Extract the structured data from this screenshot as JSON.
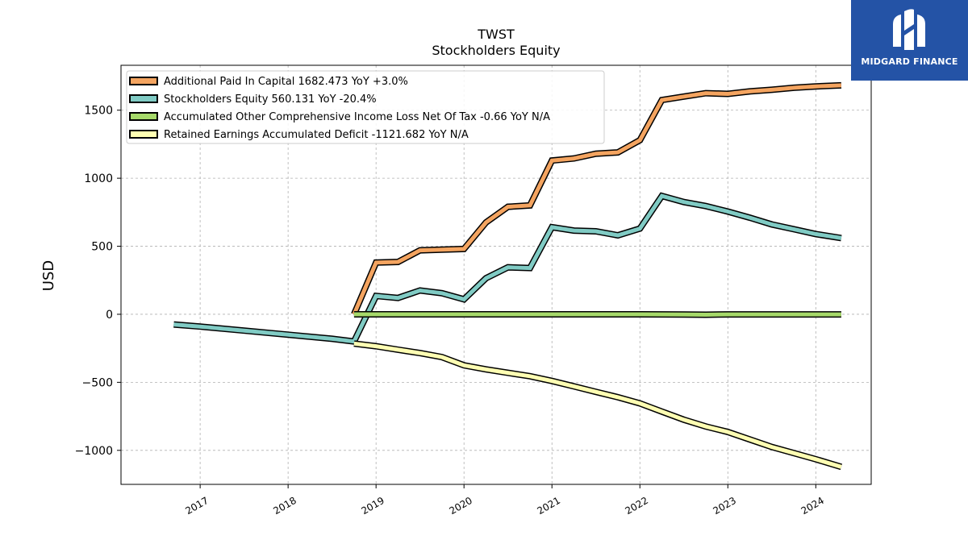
{
  "chart_data": {
    "type": "line",
    "title": "TWST",
    "subtitle": "Stockholders  Equity",
    "ylabel": "USD",
    "xlim": [
      2016.1,
      2024.63
    ],
    "ylim": [
      -1250,
      1830
    ],
    "yticks": [
      -1000,
      -500,
      0,
      500,
      1000,
      1500
    ],
    "ytick_labels": [
      "−1000",
      "−500",
      "0",
      "500",
      "1000",
      "1500"
    ],
    "xticks": [
      2017,
      2018,
      2019,
      2020,
      2021,
      2022,
      2023,
      2024
    ],
    "xtick_labels": [
      "2017",
      "2018",
      "2019",
      "2020",
      "2021",
      "2022",
      "2023",
      "2024"
    ],
    "grid": true,
    "legend_position": "top-left",
    "series": [
      {
        "name": "Additional Paid In Capital  1682.473 YoY +3.0%",
        "color": "#f4a460",
        "x": [
          2018.75,
          2019.0,
          2019.25,
          2019.5,
          2019.75,
          2020.0,
          2020.25,
          2020.5,
          2020.75,
          2021.0,
          2021.25,
          2021.5,
          2021.75,
          2022.0,
          2022.25,
          2022.5,
          2022.75,
          2023.0,
          2023.25,
          2023.5,
          2023.75,
          2024.0,
          2024.29
        ],
        "y": [
          0,
          380,
          385,
          470,
          475,
          480,
          675,
          790,
          800,
          1130,
          1145,
          1180,
          1190,
          1280,
          1575,
          1600,
          1625,
          1620,
          1638,
          1650,
          1665,
          1675,
          1682.473
        ]
      },
      {
        "name": "Stockholders Equity  560.131 YoY -20.4%",
        "color": "#80cbc4",
        "x": [
          2016.7,
          2017.0,
          2017.5,
          2018.0,
          2018.5,
          2018.75,
          2019.0,
          2019.25,
          2019.5,
          2019.75,
          2020.0,
          2020.25,
          2020.5,
          2020.75,
          2021.0,
          2021.25,
          2021.5,
          2021.75,
          2022.0,
          2022.25,
          2022.5,
          2022.75,
          2023.0,
          2023.25,
          2023.5,
          2023.75,
          2024.0,
          2024.29
        ],
        "y": [
          -75,
          -90,
          -120,
          -150,
          -180,
          -200,
          135,
          120,
          175,
          155,
          110,
          265,
          345,
          340,
          640,
          615,
          610,
          580,
          630,
          870,
          825,
          795,
          755,
          710,
          660,
          625,
          590,
          560.131
        ]
      },
      {
        "name": "Accumulated Other Comprehensive Income Loss Net Of Tax  -0.66 YoY N/A",
        "color": "#a6d96a",
        "x": [
          2018.75,
          2019.0,
          2020.0,
          2021.0,
          2022.0,
          2022.5,
          2022.75,
          2023.0,
          2023.5,
          2024.0,
          2024.29
        ],
        "y": [
          0,
          0,
          0,
          0,
          0,
          -2,
          -3,
          -1,
          -1,
          -0.7,
          -0.66
        ]
      },
      {
        "name": "Retained Earnings Accumulated Deficit  -1121.682 YoY N/A",
        "color": "#ffffb3",
        "x": [
          2018.75,
          2019.0,
          2019.25,
          2019.5,
          2019.75,
          2020.0,
          2020.25,
          2020.5,
          2020.75,
          2021.0,
          2021.25,
          2021.5,
          2021.75,
          2022.0,
          2022.25,
          2022.5,
          2022.75,
          2023.0,
          2023.25,
          2023.5,
          2023.75,
          2024.0,
          2024.29
        ],
        "y": [
          -215,
          -235,
          -260,
          -285,
          -315,
          -375,
          -405,
          -430,
          -455,
          -490,
          -530,
          -570,
          -610,
          -655,
          -715,
          -775,
          -825,
          -865,
          -920,
          -975,
          -1020,
          -1065,
          -1121.682
        ]
      }
    ]
  },
  "logo": {
    "text": "MIDGARD FINANCE"
  }
}
